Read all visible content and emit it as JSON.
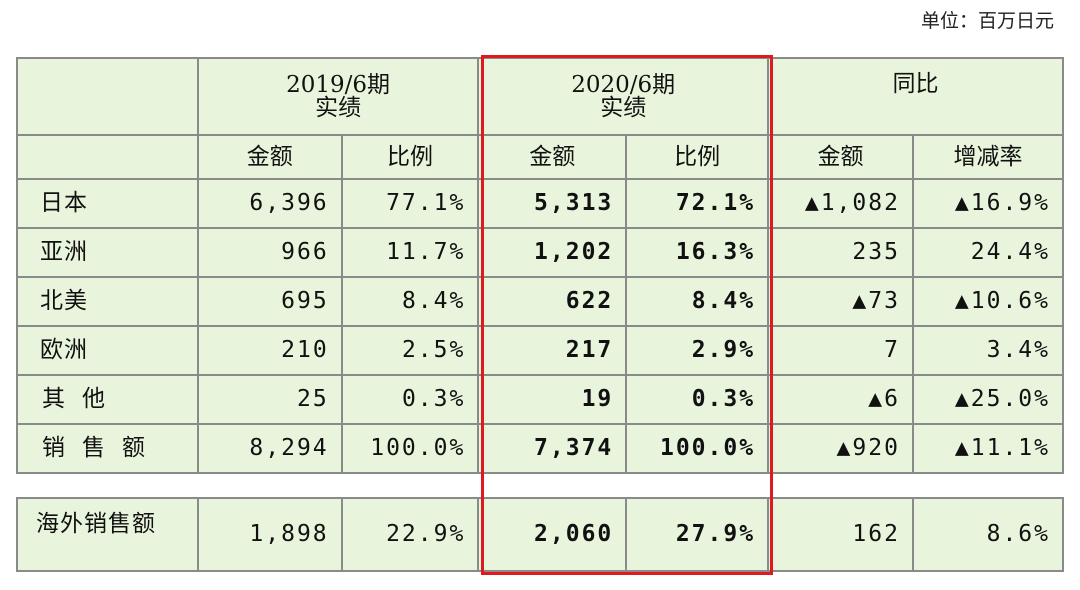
{
  "unit_label": "单位：百万日元",
  "header": {
    "period_2019": "2019/6期",
    "period_2020": "2020/6期",
    "actual": "实绩",
    "yoy": "同比"
  },
  "sub_header": {
    "amount": "金额",
    "ratio": "比例",
    "change_rate": "增减率"
  },
  "rows": [
    {
      "label": "日本",
      "a2019": "6,396",
      "r2019": "77.1%",
      "a2020": "5,313",
      "r2020": "72.1%",
      "yoy_amount": "▲1,082",
      "yoy_rate": "▲16.9%"
    },
    {
      "label": "亚洲",
      "a2019": "966",
      "r2019": "11.7%",
      "a2020": "1,202",
      "r2020": "16.3%",
      "yoy_amount": "235",
      "yoy_rate": "24.4%"
    },
    {
      "label": "北美",
      "a2019": "695",
      "r2019": "8.4%",
      "a2020": "622",
      "r2020": "8.4%",
      "yoy_amount": "▲73",
      "yoy_rate": "▲10.6%"
    },
    {
      "label": "欧洲",
      "a2019": "210",
      "r2019": "2.5%",
      "a2020": "217",
      "r2020": "2.9%",
      "yoy_amount": "7",
      "yoy_rate": "3.4%"
    },
    {
      "label": "其他",
      "a2019": "25",
      "r2019": "0.3%",
      "a2020": "19",
      "r2020": "0.3%",
      "yoy_amount": "▲6",
      "yoy_rate": "▲25.0%"
    },
    {
      "label": "销售额",
      "a2019": "8,294",
      "r2019": "100.0%",
      "a2020": "7,374",
      "r2020": "100.0%",
      "yoy_amount": "▲920",
      "yoy_rate": "▲11.1%"
    }
  ],
  "overseas": {
    "label": "海外销售额",
    "a2019": "1,898",
    "r2019": "22.9%",
    "a2020": "2,060",
    "r2020": "27.9%",
    "yoy_amount": "162",
    "yoy_rate": "8.6%"
  },
  "colors": {
    "cell_bg": "#e8f5dc",
    "border": "#8a8a8a",
    "highlight": "#e0191e"
  }
}
